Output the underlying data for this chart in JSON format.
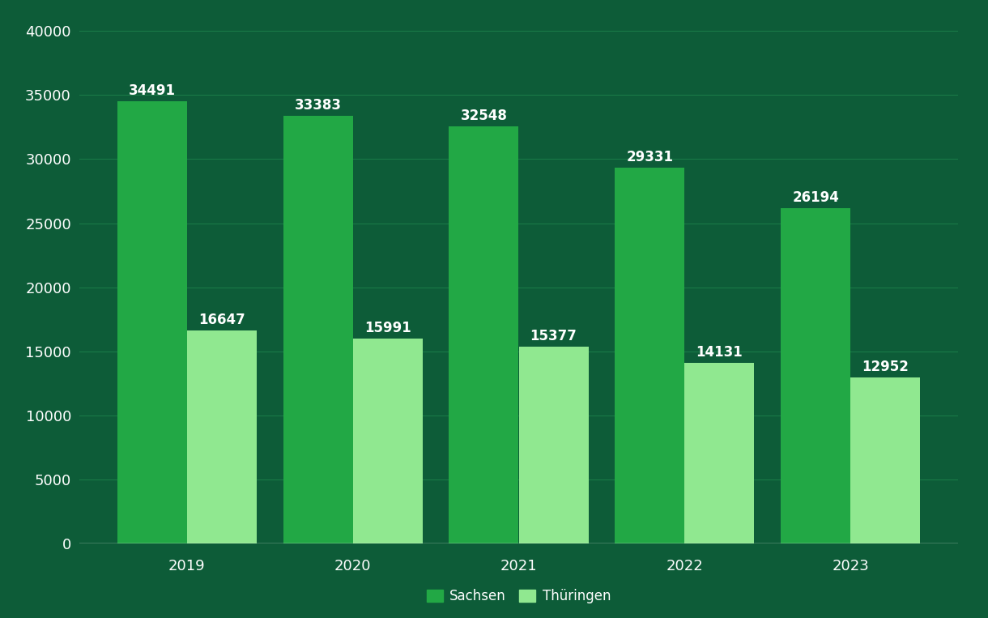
{
  "years": [
    "2019",
    "2020",
    "2021",
    "2022",
    "2023"
  ],
  "sachsen": [
    34491,
    33383,
    32548,
    29331,
    26194
  ],
  "thueringen": [
    16647,
    15991,
    15377,
    14131,
    12952
  ],
  "sachsen_color": "#22a845",
  "thueringen_color": "#90e890",
  "background_color": "#0d5c38",
  "text_color": "#ffffff",
  "grid_color": "#1a7a48",
  "ylim": [
    0,
    40000
  ],
  "yticks": [
    0,
    5000,
    10000,
    15000,
    20000,
    25000,
    30000,
    35000,
    40000
  ],
  "bar_width": 0.42,
  "legend_sachsen": "Sachsen",
  "legend_thueringen": "Thüringen",
  "label_fontsize": 12,
  "tick_fontsize": 13,
  "legend_fontsize": 12
}
